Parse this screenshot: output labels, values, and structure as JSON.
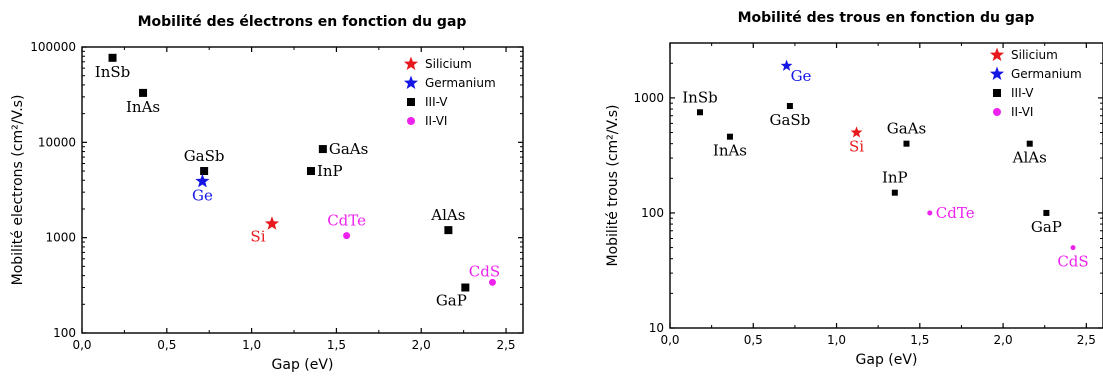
{
  "chart_data": [
    {
      "type": "scatter",
      "title": "Mobilité des électrons en fonction du gap",
      "xlabel": "Gap (eV)",
      "ylabel": "Mobilité electrons (cm²/V.s)",
      "xlim": [
        0,
        2.6
      ],
      "ylim": [
        100,
        100000
      ],
      "yscale": "log",
      "x_ticks": [
        0,
        0.5,
        1.0,
        1.5,
        2.0,
        2.5
      ],
      "x_tick_labels": [
        "0,0",
        "0,5",
        "1,0",
        "1,5",
        "2,0",
        "2,5"
      ],
      "y_ticks": [
        100,
        1000,
        10000,
        100000
      ],
      "y_tick_labels": [
        "100",
        "1000",
        "10000",
        "100000"
      ],
      "legend_position": "top-right",
      "legend": [
        {
          "label": "Silicium",
          "marker": "star",
          "color": "#e8191c"
        },
        {
          "label": "Germanium",
          "marker": "star",
          "color": "#1515e6"
        },
        {
          "label": "III-V",
          "marker": "square",
          "color": "#000000"
        },
        {
          "label": "II-VI",
          "marker": "circle",
          "color": "#ee22ee"
        }
      ],
      "points": [
        {
          "label": "InSb",
          "x": 0.18,
          "y": 77000,
          "group": "III-V",
          "color": "#000000",
          "label_pos": "below",
          "marker": "square"
        },
        {
          "label": "InAs",
          "x": 0.36,
          "y": 33000,
          "group": "III-V",
          "color": "#000000",
          "label_pos": "below",
          "marker": "square"
        },
        {
          "label": "GaSb",
          "x": 0.72,
          "y": 5000,
          "group": "III-V",
          "color": "#000000",
          "label_pos": "above",
          "marker": "square"
        },
        {
          "label": "Ge",
          "x": 0.71,
          "y": 3900,
          "group": "Germanium",
          "color": "#1515e6",
          "label_pos": "below",
          "marker": "star"
        },
        {
          "label": "GaAs",
          "x": 1.42,
          "y": 8500,
          "group": "III-V",
          "color": "#000000",
          "label_pos": "right",
          "marker": "square"
        },
        {
          "label": "InP",
          "x": 1.35,
          "y": 5000,
          "group": "III-V",
          "color": "#000000",
          "label_pos": "right",
          "marker": "square"
        },
        {
          "label": "Si",
          "x": 1.12,
          "y": 1400,
          "group": "Silicium",
          "color": "#e8191c",
          "label_pos": "below-left",
          "marker": "star"
        },
        {
          "label": "CdTe",
          "x": 1.56,
          "y": 1050,
          "group": "II-VI",
          "color": "#ee22ee",
          "label_pos": "above",
          "marker": "circle"
        },
        {
          "label": "AlAs",
          "x": 2.16,
          "y": 1200,
          "group": "III-V",
          "color": "#000000",
          "label_pos": "above",
          "marker": "square"
        },
        {
          "label": "GaP",
          "x": 2.26,
          "y": 300,
          "group": "III-V",
          "color": "#000000",
          "label_pos": "below-left",
          "marker": "square"
        },
        {
          "label": "CdS",
          "x": 2.42,
          "y": 340,
          "group": "II-VI",
          "color": "#ee22ee",
          "label_pos": "above-left",
          "marker": "circle"
        }
      ]
    },
    {
      "type": "scatter",
      "title": "Mobilité des trous en fonction du gap",
      "xlabel": "Gap (eV)",
      "ylabel": "Mobilité trous (cm²/V.s)",
      "xlim": [
        0,
        2.6
      ],
      "ylim": [
        10,
        3000
      ],
      "yscale": "log",
      "x_ticks": [
        0,
        0.5,
        1.0,
        1.5,
        2.0,
        2.5
      ],
      "x_tick_labels": [
        "0,0",
        "0,5",
        "1,0",
        "1,5",
        "2,0",
        "2,5"
      ],
      "y_ticks": [
        10,
        100,
        1000
      ],
      "y_tick_labels": [
        "10",
        "100",
        "1000"
      ],
      "legend_position": "top-right",
      "legend": [
        {
          "label": "Silicium",
          "marker": "star",
          "color": "#e8191c"
        },
        {
          "label": "Germanium",
          "marker": "star",
          "color": "#1515e6"
        },
        {
          "label": "III-V",
          "marker": "square",
          "color": "#000000"
        },
        {
          "label": "II-VI",
          "marker": "circle",
          "color": "#ee22ee"
        }
      ],
      "points": [
        {
          "label": "InSb",
          "x": 0.18,
          "y": 750,
          "group": "III-V",
          "color": "#000000",
          "label_pos": "above",
          "marker": "square"
        },
        {
          "label": "InAs",
          "x": 0.36,
          "y": 460,
          "group": "III-V",
          "color": "#000000",
          "label_pos": "below",
          "marker": "square"
        },
        {
          "label": "Ge",
          "x": 0.7,
          "y": 1900,
          "group": "Germanium",
          "color": "#1515e6",
          "label_pos": "below-right",
          "marker": "star"
        },
        {
          "label": "GaSb",
          "x": 0.72,
          "y": 850,
          "group": "III-V",
          "color": "#000000",
          "label_pos": "below",
          "marker": "square"
        },
        {
          "label": "Si",
          "x": 1.12,
          "y": 500,
          "group": "Silicium",
          "color": "#e8191c",
          "label_pos": "below",
          "marker": "star"
        },
        {
          "label": "GaAs",
          "x": 1.42,
          "y": 400,
          "group": "III-V",
          "color": "#000000",
          "label_pos": "above",
          "marker": "square"
        },
        {
          "label": "InP",
          "x": 1.35,
          "y": 150,
          "group": "III-V",
          "color": "#000000",
          "label_pos": "above",
          "marker": "square"
        },
        {
          "label": "CdTe",
          "x": 1.56,
          "y": 100,
          "group": "II-VI",
          "color": "#ee22ee",
          "label_pos": "right",
          "marker": "circle"
        },
        {
          "label": "AlAs",
          "x": 2.16,
          "y": 400,
          "group": "III-V",
          "color": "#000000",
          "label_pos": "below",
          "marker": "square"
        },
        {
          "label": "GaP",
          "x": 2.26,
          "y": 100,
          "group": "III-V",
          "color": "#000000",
          "label_pos": "below",
          "marker": "square"
        },
        {
          "label": "CdS",
          "x": 2.42,
          "y": 50,
          "group": "II-VI",
          "color": "#ee22ee",
          "label_pos": "below",
          "marker": "circle"
        }
      ]
    }
  ]
}
